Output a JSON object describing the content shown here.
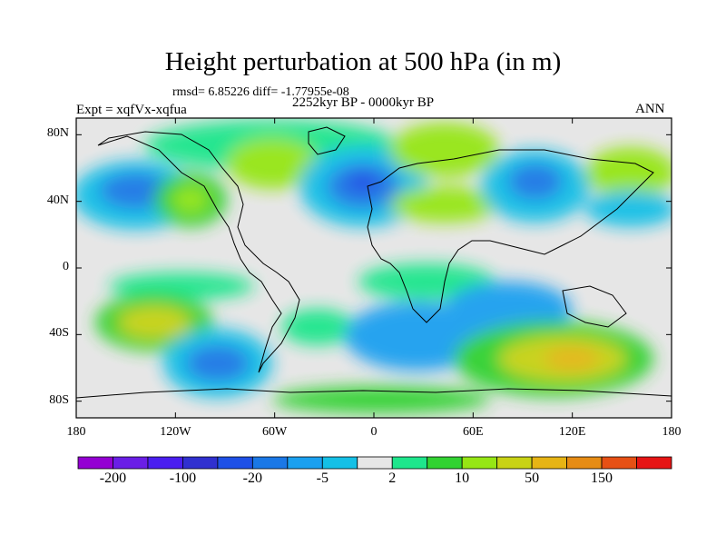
{
  "title": "Height perturbation at 500 hPa (in m)",
  "stats": "rmsd= 6.85226 diff= -1.77955e-08",
  "left_label": "Expt = xqfVx-xqfua",
  "center_label": "2252kyr BP - 0000kyr BP",
  "right_label": "ANN",
  "map": {
    "lat_ticks": [
      "80N",
      "40N",
      "0",
      "40S",
      "80S"
    ],
    "lat_values": [
      80,
      40,
      0,
      -40,
      -80
    ],
    "lon_ticks": [
      "180",
      "120W",
      "60W",
      "0",
      "60E",
      "120E",
      "180"
    ],
    "lon_values": [
      -180,
      -120,
      -60,
      0,
      60,
      120,
      180
    ],
    "lat_range": [
      -90,
      90
    ],
    "lon_range": [
      -180,
      180
    ],
    "background_color": "#e6e6e6",
    "projection": "cylindrical-equidistant"
  },
  "colorbar": {
    "colors": [
      "#9400d3",
      "#6a1ee6",
      "#4a1ef0",
      "#3030d0",
      "#1e50e6",
      "#1a78e6",
      "#1aa0f0",
      "#14c0e6",
      "#e6e6e6",
      "#1ee68c",
      "#32d232",
      "#96e614",
      "#c8d214",
      "#e6b414",
      "#e68c14",
      "#e65014",
      "#e61414"
    ],
    "labels": [
      "-200",
      "-100",
      "-20",
      "-5",
      "2",
      "10",
      "50",
      "150"
    ]
  }
}
